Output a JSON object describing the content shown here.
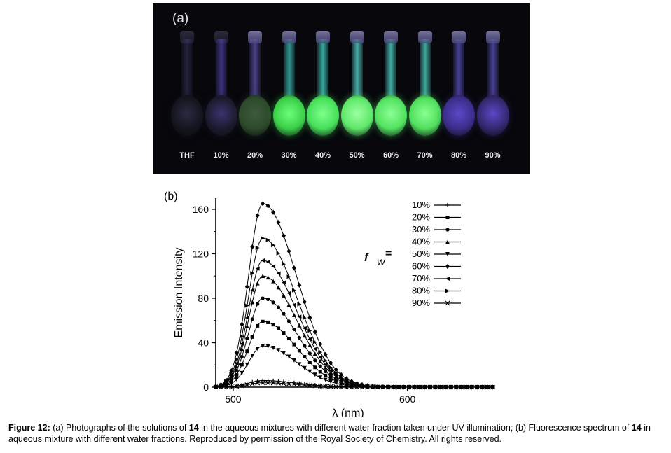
{
  "panel_a": {
    "label": "(a)",
    "flasks": [
      {
        "label": "THF",
        "glow": "#2a2a44",
        "bulb": "#15151f",
        "neck": "#2b2a49"
      },
      {
        "label": "10%",
        "glow": "#3a3470",
        "bulb": "#1c1b2e",
        "neck": "#4a3f9a"
      },
      {
        "label": "20%",
        "glow": "#3d5a3a",
        "bulb": "#2d4a2b",
        "neck": "#5b4fa8"
      },
      {
        "label": "30%",
        "glow": "#6aff7a",
        "bulb": "#3ccf4a",
        "neck": "#3bb8b0"
      },
      {
        "label": "40%",
        "glow": "#7dff8a",
        "bulb": "#46e05a",
        "neck": "#42d0c0"
      },
      {
        "label": "50%",
        "glow": "#9dffa0",
        "bulb": "#5ee86a",
        "neck": "#59d8d0"
      },
      {
        "label": "60%",
        "glow": "#8cff95",
        "bulb": "#52e260",
        "neck": "#4fd3c8"
      },
      {
        "label": "70%",
        "glow": "#8aff90",
        "bulb": "#50df5d",
        "neck": "#4dcfc0"
      },
      {
        "label": "80%",
        "glow": "#5a48c8",
        "bulb": "#3c2e8a",
        "neck": "#5a4fb8"
      },
      {
        "label": "90%",
        "glow": "#5a48c8",
        "bulb": "#34286f",
        "neck": "#5a4fb8"
      }
    ]
  },
  "chart_data": {
    "type": "line",
    "panel_label": "(b)",
    "xlabel": "λ (nm)",
    "ylabel": "Emission Intensity",
    "xlim": [
      490,
      650
    ],
    "ylim": [
      0,
      170
    ],
    "xticks": [
      500,
      600
    ],
    "yticks": [
      0,
      40,
      80,
      120,
      160
    ],
    "legend_title": "f",
    "legend_title_sub": "w",
    "legend_eq": "=",
    "legend_position": "top-right",
    "peak_wavelength": 517,
    "series": [
      {
        "name": "10%",
        "marker": "plus",
        "peak": 6
      },
      {
        "name": "20%",
        "marker": "square",
        "peak": 59
      },
      {
        "name": "30%",
        "marker": "circle",
        "peak": 80
      },
      {
        "name": "40%",
        "marker": "triangle-up",
        "peak": 100
      },
      {
        "name": "50%",
        "marker": "triangle-down",
        "peak": 37
      },
      {
        "name": "60%",
        "marker": "diamond",
        "peak": 165
      },
      {
        "name": "70%",
        "marker": "triangle-left",
        "peak": 114
      },
      {
        "name": "80%",
        "marker": "triangle-right",
        "peak": 134
      },
      {
        "name": "90%",
        "marker": "cross",
        "peak": 4
      }
    ]
  },
  "caption": {
    "label": "Figure 12:",
    "part1": " (a) Photographs of the solutions of ",
    "bold1": "14",
    "part2": " in the aqueous mixtures with different water fraction taken under UV illumination; (b) Fluorescence spectrum of ",
    "bold2": "14",
    "part3": " in aqueous mixture with different water fractions. Reproduced by permission of the Royal Society of Chemistry. All rights reserved."
  }
}
